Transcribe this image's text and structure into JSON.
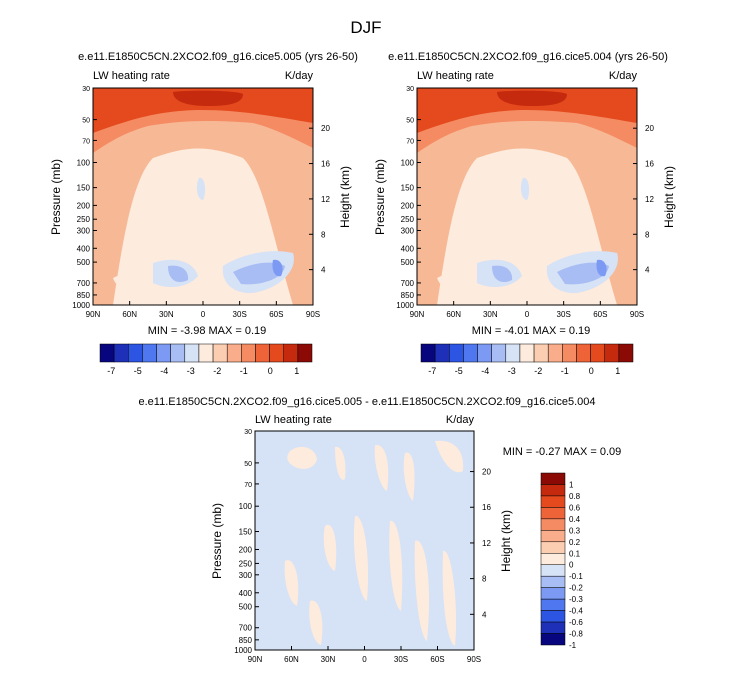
{
  "figure_title": "DJF",
  "chart_data": [
    {
      "type": "heatmap",
      "title": "e.e11.E1850C5CN.2XCO2.f09_g16.cice5.005 (yrs 26-50)",
      "left_string": "LW heating rate",
      "right_string": "K/day",
      "ylabel": "Pressure (mb)",
      "ylabel_right": "Height (km)",
      "x_ticks": [
        "90N",
        "60N",
        "30N",
        "0",
        "30S",
        "60S",
        "90S"
      ],
      "y_ticks": [
        "30",
        "50",
        "70",
        "100",
        "150",
        "200",
        "250",
        "300",
        "400",
        "500",
        "700",
        "850",
        "1000"
      ],
      "height_ticks": [
        "20",
        "16",
        "12",
        "8",
        "4"
      ],
      "y_scale": "log",
      "ylim": [
        1000,
        30
      ],
      "xlim": [
        "90N",
        "90S"
      ],
      "min_max_label": "MIN = -3.98 MAX = 0.19",
      "stats": {
        "min": -3.98,
        "max": 0.19
      }
    },
    {
      "type": "heatmap",
      "title": "e.e11.E1850C5CN.2XCO2.f09_g16.cice5.004 (yrs 26-50)",
      "left_string": "LW heating rate",
      "right_string": "K/day",
      "ylabel": "Pressure (mb)",
      "ylabel_right": "Height (km)",
      "x_ticks": [
        "90N",
        "60N",
        "30N",
        "0",
        "30S",
        "60S",
        "90S"
      ],
      "y_ticks": [
        "30",
        "50",
        "70",
        "100",
        "150",
        "200",
        "250",
        "300",
        "400",
        "500",
        "700",
        "850",
        "1000"
      ],
      "height_ticks": [
        "20",
        "16",
        "12",
        "8",
        "4"
      ],
      "y_scale": "log",
      "ylim": [
        1000,
        30
      ],
      "xlim": [
        "90N",
        "90S"
      ],
      "min_max_label": "MIN = -4.01 MAX = 0.19",
      "stats": {
        "min": -4.01,
        "max": 0.19
      }
    },
    {
      "type": "heatmap",
      "title": "e.e11.E1850C5CN.2XCO2.f09_g16.cice5.005 - e.e11.E1850C5CN.2XCO2.f09_g16.cice5.004",
      "left_string": "LW heating rate",
      "right_string": "K/day",
      "ylabel": "Pressure (mb)",
      "ylabel_right": "Height (km)",
      "x_ticks": [
        "90N",
        "60N",
        "30N",
        "0",
        "30S",
        "60S",
        "90S"
      ],
      "y_ticks": [
        "30",
        "50",
        "70",
        "100",
        "150",
        "200",
        "250",
        "300",
        "400",
        "500",
        "700",
        "850",
        "1000"
      ],
      "height_ticks": [
        "20",
        "16",
        "12",
        "8",
        "4"
      ],
      "y_scale": "log",
      "ylim": [
        1000,
        30
      ],
      "xlim": [
        "90N",
        "90S"
      ],
      "min_max_label": "MIN = -0.27 MAX = 0.09",
      "stats": {
        "min": -0.27,
        "max": 0.09
      }
    }
  ],
  "colorbar_top": {
    "tick_labels": [
      "-7",
      "-5",
      "-4",
      "-3",
      "-2",
      "-1",
      "0",
      "1"
    ],
    "colors": [
      "#08067e",
      "#1e30b8",
      "#2d55e4",
      "#4f78f0",
      "#7c9af3",
      "#a8bdf3",
      "#d6e2f6",
      "#fdebdd",
      "#fbcdb1",
      "#f9ad8a",
      "#f58b63",
      "#ef6339",
      "#e44a1d",
      "#c62a0e",
      "#8b0a05"
    ]
  },
  "colorbar_bottom": {
    "tick_labels": [
      "1",
      "0.8",
      "0.6",
      "0.4",
      "0.3",
      "0.2",
      "0.1",
      "0",
      "-0.1",
      "-0.2",
      "-0.3",
      "-0.4",
      "-0.6",
      "-0.8",
      "-1"
    ],
    "colors": [
      "#8b0a05",
      "#c62a0e",
      "#e44a1d",
      "#ef6339",
      "#f58b63",
      "#f9ad8a",
      "#fbcdb1",
      "#fdebdd",
      "#d6e2f6",
      "#a8bdf3",
      "#7c9af3",
      "#4f78f0",
      "#2d55e4",
      "#1e30b8",
      "#08067e"
    ]
  },
  "fill_colors": {
    "background_orange": "#f7b995",
    "mid_orange": "#f58b63",
    "deep_orange": "#e44a1d",
    "peak_red": "#c62a0e",
    "pale": "#fdebdd",
    "light_blue": "#d6e2f6",
    "blue": "#a8bdf3",
    "mid_blue": "#7c9af3",
    "diff_background": "#d6e2f6"
  }
}
